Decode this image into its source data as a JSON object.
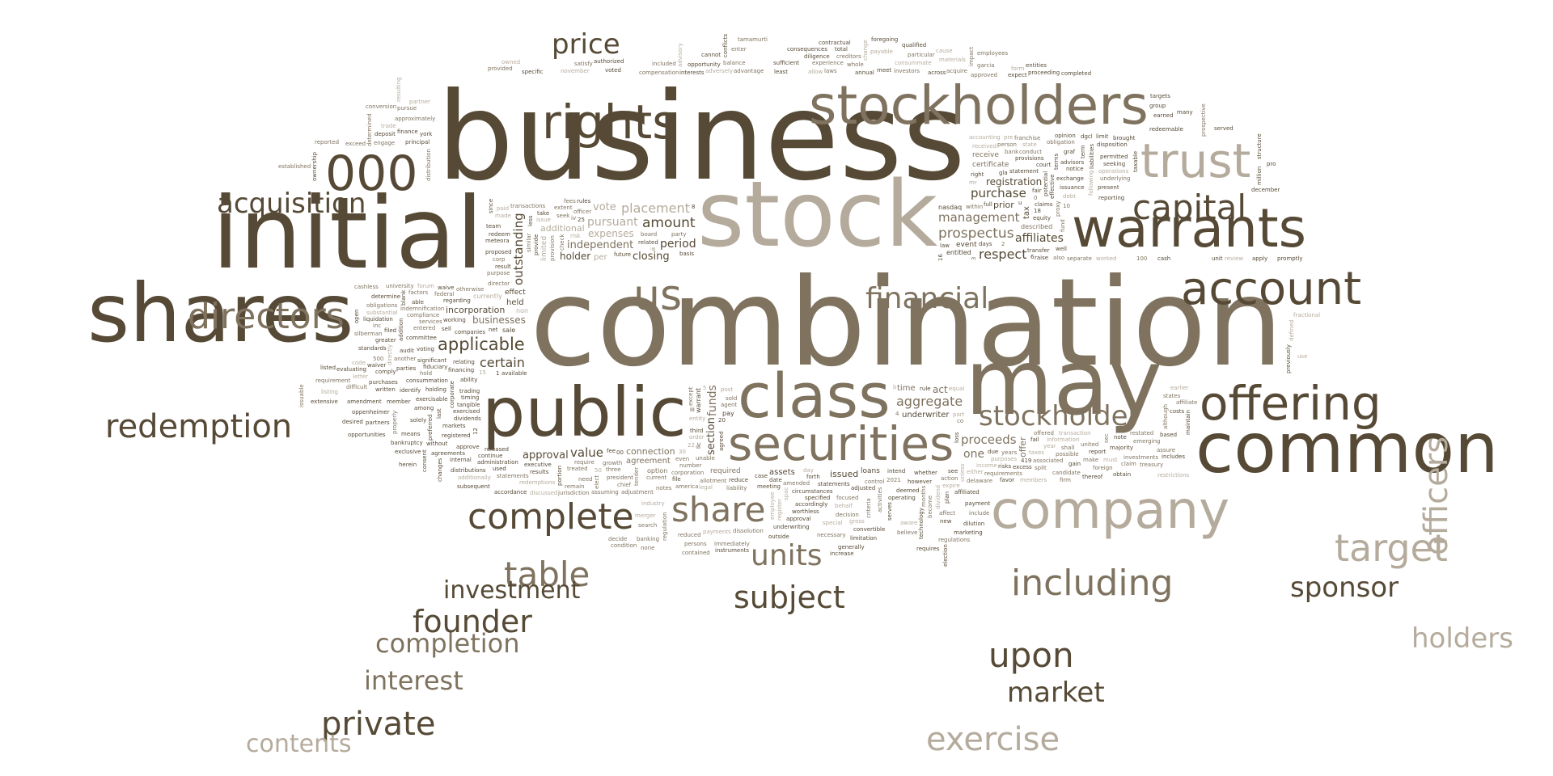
{
  "colors": {
    "background": "#ffffff",
    "dark": "#564a36",
    "mid": "#7f735f",
    "light": "#b5ab9c"
  },
  "words": [
    "business",
    "combination",
    "initial",
    "stock",
    "shares",
    "may",
    "public",
    "class",
    "common",
    "company",
    "warrants",
    "stockholders",
    "rights",
    "securities",
    "offering",
    "trust",
    "account",
    "directors",
    "000",
    "us",
    "acquisition",
    "target",
    "redemption",
    "including",
    "capital",
    "financial",
    "price",
    "exercise",
    "complete",
    "share",
    "upon",
    "stockholder",
    "applicable",
    "officers",
    "market",
    "table",
    "subject",
    "units",
    "sponsor",
    "holders",
    "founder",
    "completion",
    "investment",
    "interest",
    "private",
    "contents",
    "amount",
    "prospectus",
    "respect",
    "aggregate",
    "certain",
    "placement",
    "outstanding",
    "management",
    "purchase",
    "proceeds",
    "value",
    "pursuant",
    "period",
    "funds",
    "affiliates",
    "one",
    "approval",
    "vote",
    "closing",
    "independent",
    "section",
    "act",
    "registration",
    "expenses",
    "holder",
    "businesses",
    "issued",
    "offer",
    "prior",
    "additional",
    "incorporation",
    "connection",
    "underwriter",
    "time",
    "tax",
    "per",
    "held",
    "agreement",
    "assets",
    "certificate",
    "event",
    "limited",
    "effect",
    "required",
    "loans",
    "receive",
    "entitled",
    "currently",
    "warrant",
    "option",
    "pay",
    "described",
    "nasdaq",
    "non",
    "sale",
    "except",
    "related",
    "within",
    "transfer",
    "transaction",
    "relating",
    "unable",
    "less",
    "board",
    "claims",
    "information",
    "ability",
    "number",
    "basis",
    "proxy",
    "well",
    "year",
    "available",
    "officer",
    "rules",
    "transactions",
    "potential",
    "taxes",
    "exercised",
    "party",
    "regarding",
    "director",
    "whether",
    "unless",
    "released",
    "seek",
    "future",
    "sold",
    "due",
    "purposes",
    "effective",
    "extent",
    "result",
    "amended",
    "statements",
    "income",
    "equity",
    "provision",
    "meteora",
    "agent",
    "third",
    "part",
    "statement",
    "otherwise",
    "provide",
    "allotment",
    "rule",
    "received",
    "days",
    "purpose",
    "committee",
    "tender",
    "date",
    "mr",
    "law",
    "corp",
    "companies",
    "require",
    "agreed",
    "accounting",
    "exchange",
    "also",
    "net",
    "growth",
    "right",
    "following",
    "provisions",
    "restated",
    "trading",
    "current",
    "least",
    "debt",
    "terms",
    "states",
    "tangible",
    "corporation",
    "redeem",
    "operations",
    "cash",
    "sec",
    "dividends",
    "fees",
    "proposed",
    "post",
    "however",
    "united",
    "corporate",
    "compensation",
    "team",
    "made",
    "risks",
    "shall",
    "executive",
    "check",
    "working",
    "entity",
    "deemed",
    "requirements",
    "fair",
    "federal",
    "addition",
    "day",
    "case",
    "co",
    "issuance",
    "indemnification",
    "voting",
    "spac",
    "intend",
    "2021",
    "reporting",
    "factors",
    "sell",
    "legal",
    "llc",
    "person",
    "full",
    "obligations",
    "consummation",
    "order",
    "meeting",
    "fund",
    "notice",
    "services",
    "significant",
    "30",
    "20",
    "10",
    "16",
    "100",
    "00",
    "50",
    "25",
    "2",
    "6",
    "3",
    "1",
    "5",
    "8",
    "0",
    "18",
    "4",
    "12",
    "22",
    "interests",
    "laws",
    "excess",
    "offered",
    "administration",
    "advisory",
    "opportunity",
    "franchise",
    "report",
    "make",
    "registered",
    "november",
    "blank",
    "conduct",
    "circumstances",
    "possible",
    "continue",
    "issue",
    "fiduciary",
    "activities",
    "operating",
    "action",
    "gla",
    "risk",
    "filed",
    "america",
    "loss",
    "years",
    "present",
    "substantial",
    "audit",
    "three",
    "see",
    "months",
    "graf",
    "paid",
    "financing",
    "president",
    "specified",
    "obligation",
    "liabilities",
    "forum",
    "able",
    "chief",
    "adjusted",
    "investors",
    "seeking",
    "directly",
    "exercisable",
    "treated",
    "sufficient",
    "separate",
    "dgcl",
    "review",
    "last",
    "adjustment",
    "cannot",
    "experience",
    "disposition",
    "earlier",
    "timing",
    "elect",
    "voted",
    "creditors",
    "permitted",
    "worked",
    "results",
    "included",
    "conflicts",
    "underlying",
    "forth",
    "members",
    "markets",
    "satisfy",
    "principal",
    "criteria",
    "favor",
    "equal",
    "used",
    "approximately",
    "determine",
    "assuming",
    "serves",
    "expire",
    "brought",
    "university",
    "parties",
    "notes",
    "reduce",
    "dividend",
    "advisors",
    "engage",
    "purchases",
    "statements",
    "accordingly",
    "either",
    "taxable",
    "compliance",
    "standards",
    "control",
    "worthless",
    "pre",
    "court",
    "distribution",
    "liquidation",
    "jurisdiction",
    "approval",
    "consummate",
    "across",
    "hold",
    "preferred",
    "focused",
    "underwriting",
    "allow",
    "earned",
    "entered",
    "member",
    "regulation",
    "annual",
    "materials",
    "redeemable",
    "emerging",
    "approve",
    "need",
    "since",
    "adversely",
    "apply",
    "affiliate",
    "internal",
    "liability",
    "diligence",
    "change",
    "majority",
    "associated",
    "holding",
    "advantage",
    "authorized",
    "payable",
    "maintain",
    "foreign",
    "agreements",
    "provided",
    "finance",
    "state",
    "thereof",
    "become",
    "without",
    "pursue",
    "among",
    "gross",
    "gain",
    "candidate",
    "term",
    "cashless",
    "waive",
    "payments",
    "payment",
    "split",
    "expect",
    "similar",
    "take",
    "industry",
    "affiliated",
    "include",
    "limit",
    "500",
    "portion",
    "merger",
    "convertible",
    "approved",
    "proceeding",
    "silberman",
    "comply",
    "employee",
    "outside",
    "bank",
    "group",
    "difficult",
    "identify",
    "behalf",
    "technology",
    "balance",
    "raise",
    "another",
    "amendment",
    "redemptions",
    "consequences",
    "impact",
    "december",
    "investments",
    "solely",
    "discussed",
    "contractual",
    "acquire",
    "previously",
    "claim",
    "means",
    "additionally",
    "total",
    "enter",
    "fail",
    "although",
    "distributions",
    "owned",
    "york",
    "whole",
    "costs",
    "assure",
    "consent",
    "partner",
    "greater",
    "necessary",
    "based",
    "treasury",
    "subsequent",
    "resulting",
    "deposit",
    "reduced",
    "dilution",
    "firm",
    "opinion",
    "trade",
    "open",
    "delaware",
    "note",
    "decision",
    "many",
    "15",
    "written",
    "properly",
    "limitation",
    "believe",
    "unit",
    "code",
    "accordance",
    "remain",
    "plan",
    "particular",
    "targets",
    "letter",
    "evaluating",
    "search",
    "generally",
    "prospective",
    "completed",
    "listing",
    "opportunities",
    "dissolution",
    "increase",
    "iv",
    "million",
    "fractional",
    "waiver",
    "banking",
    "meet",
    "employees",
    "promptly",
    "defined",
    "partners",
    "immediately",
    "specific",
    "garcia",
    "obtain",
    "use",
    "changes",
    "none",
    "foregoing",
    "tamamurti",
    "419",
    "must",
    "exclusive",
    "determined",
    "qualified",
    "even",
    "marketing",
    "restrictions",
    "herein",
    "exceed",
    "ownership",
    "regulations",
    "includes",
    "aware",
    "fee",
    "reported",
    "oppenheimer",
    "ii",
    "iii",
    "b",
    "u",
    "conversion",
    "listed",
    "persons",
    "election",
    "special",
    "entities",
    "established",
    "bankruptcy",
    "contained",
    "instruments",
    "register",
    "served",
    "inc",
    "extensive",
    "affect",
    "new",
    "form",
    "structure",
    "requirement",
    "desired",
    "decide",
    "requires",
    "cause",
    "pro",
    "issuable",
    "file",
    "condition"
  ]
}
